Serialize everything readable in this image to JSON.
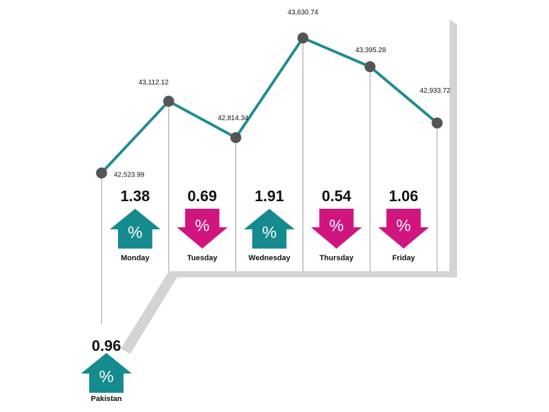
{
  "chart_data": {
    "type": "line",
    "categories": [
      null,
      null,
      null,
      null,
      null,
      null
    ],
    "values": [
      42523.99,
      43112.12,
      42814.34,
      43630.74,
      43395.28,
      42933.72
    ],
    "value_labels": [
      "42,523.99",
      "43,112.12",
      "42,814.34",
      "43,630.74",
      "43,395.28",
      "42,933.72"
    ],
    "color": "#1f8c8f",
    "ylim": [
      42000,
      43700
    ],
    "symbol": "%",
    "daily_changes": [
      {
        "day": "Monday",
        "value": 1.38,
        "direction": "up"
      },
      {
        "day": "Tuesday",
        "value": 0.69,
        "direction": "down"
      },
      {
        "day": "Wednesday",
        "value": 1.91,
        "direction": "up"
      },
      {
        "day": "Thursday",
        "value": 0.54,
        "direction": "down"
      },
      {
        "day": "Friday",
        "value": 1.06,
        "direction": "down"
      }
    ],
    "summary": {
      "day": "Pakistan",
      "value": 0.96,
      "direction": "up"
    },
    "up_color": "#158b8f",
    "down_color": "#d0157f"
  }
}
